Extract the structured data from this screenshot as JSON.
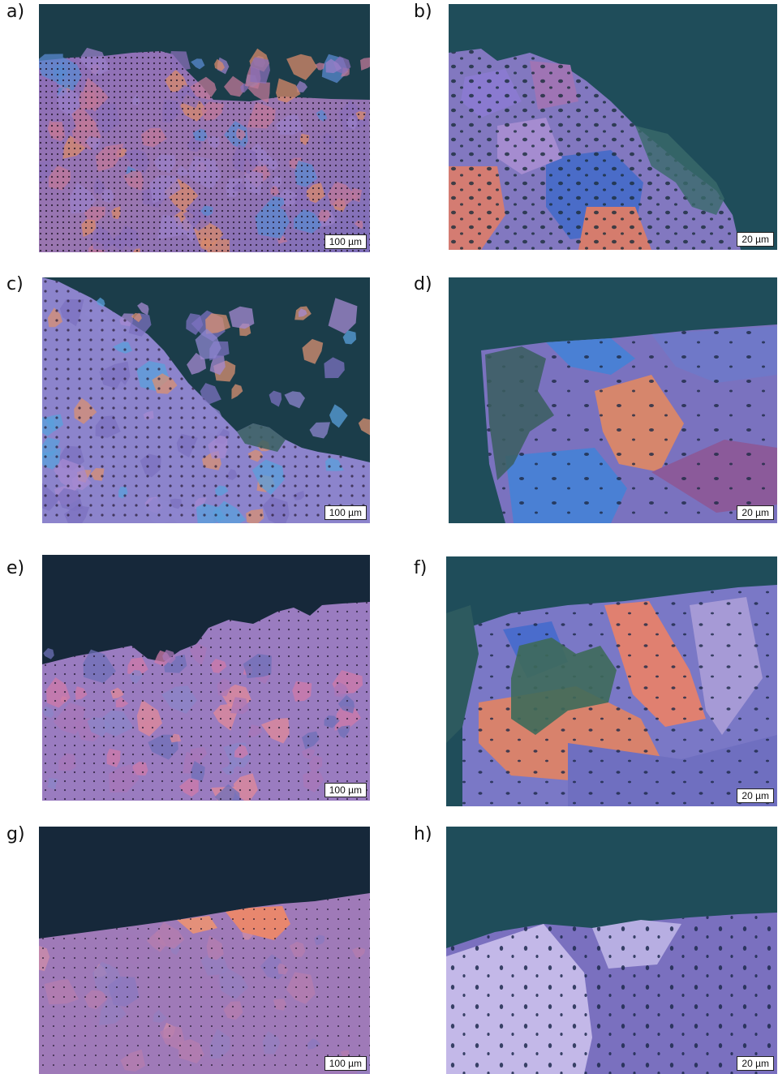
{
  "panels": [
    {
      "id": "a",
      "label": "a)",
      "scale": "100 µm"
    },
    {
      "id": "b",
      "label": "b)",
      "scale": "20 µm"
    },
    {
      "id": "c",
      "label": "c)",
      "scale": "100 µm"
    },
    {
      "id": "d",
      "label": "d)",
      "scale": "20 µm"
    },
    {
      "id": "e",
      "label": "e)",
      "scale": "100 µm"
    },
    {
      "id": "f",
      "label": "f)",
      "scale": "20 µm"
    },
    {
      "id": "g",
      "label": "g)",
      "scale": "100 µm"
    },
    {
      "id": "h",
      "label": "h)",
      "scale": "20 µm"
    }
  ],
  "colors": {
    "background": "#1b3d4a",
    "palette_a": [
      "#8a6fb8",
      "#c07898",
      "#5a8ad0",
      "#d88a6a",
      "#9a80c8"
    ],
    "palette_c": [
      "#8d86cf",
      "#5aa0dc",
      "#d99072",
      "#7c72c0",
      "#a58ad2"
    ],
    "palette_e": [
      "#a877b8",
      "#cf7aa8",
      "#8a86c8",
      "#e28a98",
      "#6e70b8"
    ],
    "palette_g": [
      "#a07ab8",
      "#b67dae",
      "#8a7ac0",
      "#cf8ea8",
      "#9380c0"
    ]
  }
}
